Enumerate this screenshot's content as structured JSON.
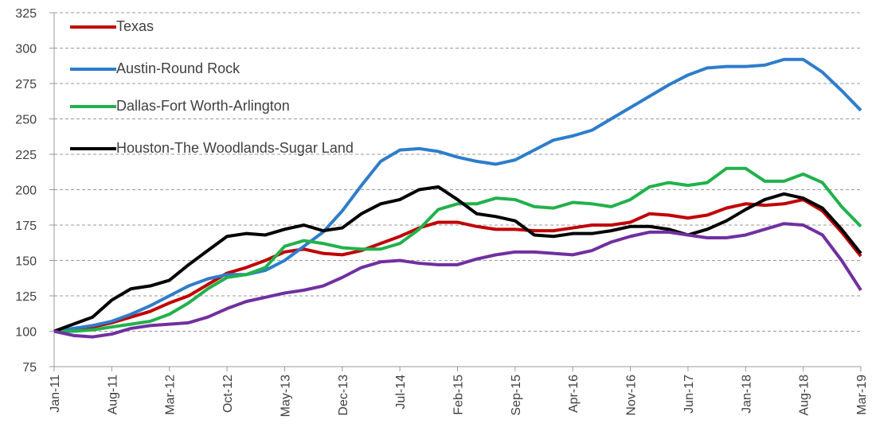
{
  "chart_data": {
    "type": "line",
    "categories": [
      "Jan-11",
      null,
      null,
      "Aug-11",
      null,
      null,
      "Mar-12",
      null,
      null,
      "Oct-12",
      null,
      null,
      "May-13",
      null,
      null,
      "Dec-13",
      null,
      null,
      "Jul-14",
      null,
      null,
      "Feb-15",
      null,
      null,
      "Sep-15",
      null,
      null,
      "Apr-16",
      null,
      null,
      "Nov-16",
      null,
      null,
      "Jun-17",
      null,
      null,
      "Jan-18",
      null,
      null,
      "Aug-18",
      null,
      null,
      "Mar-19"
    ],
    "series": [
      {
        "name": "Texas",
        "color": "#c00000",
        "values": [
          100,
          101,
          103,
          106,
          110,
          114,
          120,
          125,
          133,
          141,
          145,
          150,
          156,
          158,
          155,
          154,
          157,
          162,
          167,
          173,
          177,
          177,
          174,
          172,
          172,
          171,
          171,
          173,
          175,
          175,
          177,
          183,
          182,
          180,
          182,
          187,
          190,
          189,
          190,
          193,
          185,
          170,
          153
        ]
      },
      {
        "name": "Austin-Round Rock",
        "color": "#2e7dcb",
        "values": [
          100,
          102,
          104,
          107,
          112,
          118,
          125,
          132,
          137,
          140,
          140,
          143,
          150,
          160,
          170,
          185,
          203,
          220,
          228,
          229,
          227,
          223,
          220,
          218,
          221,
          228,
          235,
          238,
          242,
          250,
          258,
          266,
          274,
          281,
          286,
          287,
          287,
          288,
          292,
          292,
          283,
          270,
          256
        ]
      },
      {
        "name": "Dallas-Fort Worth-Arlington",
        "color": "#22b14c",
        "values": [
          100,
          100,
          101,
          103,
          105,
          107,
          112,
          120,
          130,
          138,
          140,
          145,
          160,
          164,
          162,
          159,
          158,
          158,
          162,
          172,
          186,
          190,
          190,
          194,
          193,
          188,
          187,
          191,
          190,
          188,
          193,
          202,
          205,
          203,
          205,
          215,
          215,
          206,
          206,
          211,
          205,
          188,
          174
        ]
      },
      {
        "name": "Houston-The Woodlands-Sugar Land",
        "color": "#000000",
        "values": [
          100,
          105,
          110,
          122,
          130,
          132,
          136,
          147,
          157,
          167,
          169,
          168,
          172,
          175,
          171,
          173,
          183,
          190,
          193,
          200,
          202,
          193,
          183,
          181,
          178,
          168,
          167,
          169,
          169,
          171,
          174,
          174,
          172,
          168,
          172,
          178,
          186,
          193,
          197,
          194,
          187,
          172,
          155
        ]
      },
      {
        "color": "#7030a0",
        "values": [
          100,
          97,
          96,
          98,
          102,
          104,
          105,
          106,
          110,
          116,
          121,
          124,
          127,
          129,
          132,
          138,
          145,
          149,
          150,
          148,
          147,
          147,
          151,
          154,
          156,
          156,
          155,
          154,
          157,
          163,
          167,
          170,
          170,
          168,
          166,
          166,
          168,
          172,
          176,
          175,
          168,
          150,
          129
        ]
      }
    ],
    "ylim": [
      75,
      325
    ],
    "yticks": [
      75,
      100,
      125,
      150,
      175,
      200,
      225,
      250,
      275,
      300,
      325
    ],
    "grid": true
  }
}
